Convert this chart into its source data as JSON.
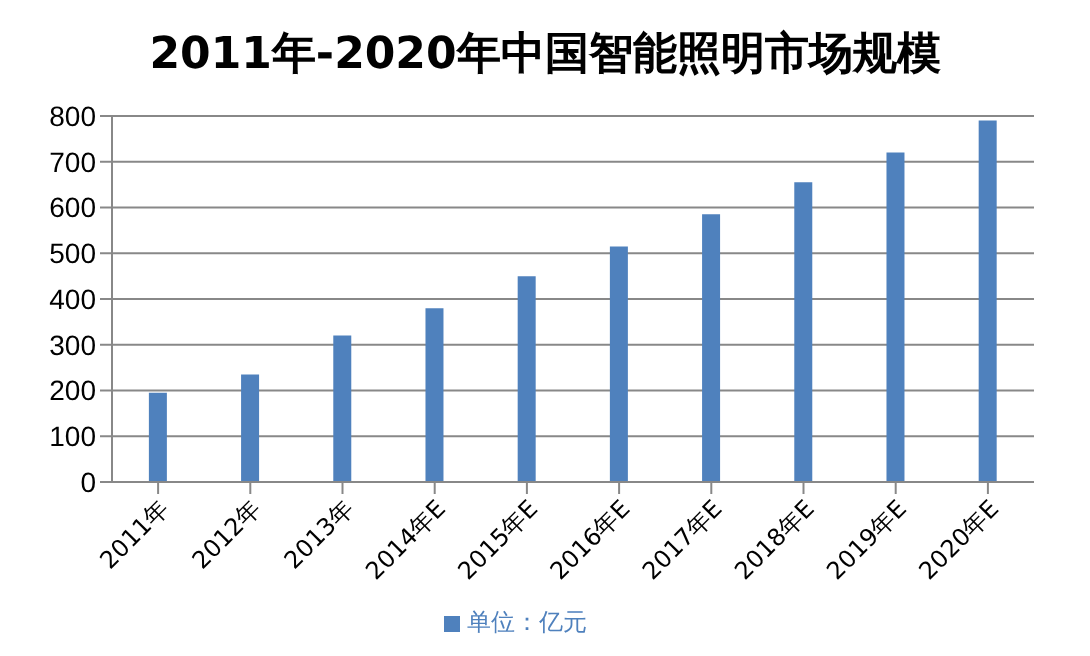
{
  "chart_data": {
    "type": "bar",
    "title": "2011年-2020年中国智能照明市场规模",
    "categories": [
      "2011年",
      "2012年",
      "2013年",
      "2014年E",
      "2015年E",
      "2016年E",
      "2017年E",
      "2018年E",
      "2019年E",
      "2020年E"
    ],
    "series": [
      {
        "name": "单位：亿元",
        "color": "#4f81bd",
        "values": [
          195,
          235,
          320,
          380,
          450,
          515,
          585,
          655,
          720,
          790
        ]
      }
    ],
    "ylim": [
      0,
      800
    ],
    "yticks": [
      0,
      100,
      200,
      300,
      400,
      500,
      600,
      700,
      800
    ],
    "grid": "y",
    "legend": "bottom"
  }
}
